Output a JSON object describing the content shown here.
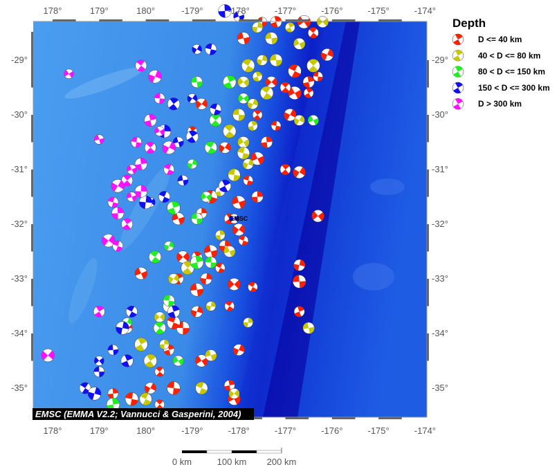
{
  "map": {
    "lon_ticks": [
      178,
      179,
      180,
      -179,
      -178,
      -177,
      -176,
      -175,
      -174
    ],
    "lon_labels": [
      "178°",
      "179°",
      "180°",
      "-179°",
      "-178°",
      "-177°",
      "-176°",
      "-175°",
      "-174°"
    ],
    "lat_ticks": [
      -29,
      -30,
      -31,
      -32,
      -33,
      -34,
      -35
    ],
    "lat_labels": [
      "-29°",
      "-30°",
      "-31°",
      "-32°",
      "-33°",
      "-34°",
      "-35°"
    ],
    "attribution": "EMSC (EMMA V2.2; Vannucci & Gasperini, 2004)",
    "marker_label": "EMSC",
    "marker_position": [
      -178.0,
      -31.9
    ]
  },
  "legend": {
    "title": "Depth",
    "items": [
      {
        "label": "D <= 40 km",
        "color": "#ff2000"
      },
      {
        "label": "40 < D <= 80 km",
        "color": "#c8c800"
      },
      {
        "label": "80 < D <= 150 km",
        "color": "#20f020"
      },
      {
        "label": "150 < D <= 300 km",
        "color": "#1010f0"
      },
      {
        "label": "D > 300 km",
        "color": "#ff10ff"
      }
    ]
  },
  "scale_bar": {
    "labels": [
      "0 km",
      "100 km",
      "200 km"
    ]
  },
  "events": [
    [
      -177.5,
      -28.3,
      0
    ],
    [
      -177.2,
      -28.3,
      0
    ],
    [
      -176.6,
      -28.3,
      0
    ],
    [
      -176.4,
      -28.5,
      0
    ],
    [
      -176.1,
      -28.9,
      0
    ],
    [
      -176.3,
      -29.3,
      0
    ],
    [
      -176.5,
      -29.4,
      0
    ],
    [
      -176.8,
      -29.6,
      0
    ],
    [
      -177.0,
      -29.5,
      0
    ],
    [
      -176.9,
      -30.0,
      0
    ],
    [
      -177.2,
      -30.2,
      0
    ],
    [
      -177.4,
      -30.5,
      0
    ],
    [
      -177.6,
      -30.8,
      0
    ],
    [
      -177.0,
      -31.0,
      0
    ],
    [
      -176.7,
      -31.05,
      0
    ],
    [
      -177.8,
      -31.2,
      0
    ],
    [
      -177.6,
      -31.5,
      0
    ],
    [
      -178.0,
      -31.6,
      0
    ],
    [
      -178.2,
      -31.9,
      0
    ],
    [
      -178.0,
      -32.1,
      0
    ],
    [
      -177.9,
      -32.3,
      0
    ],
    [
      -178.3,
      -32.4,
      0
    ],
    [
      -178.6,
      -32.5,
      0
    ],
    [
      -178.9,
      -32.6,
      0
    ],
    [
      -179.2,
      -32.6,
      0
    ],
    [
      -178.4,
      -32.8,
      0
    ],
    [
      -178.7,
      -33.0,
      0
    ],
    [
      -178.9,
      -33.2,
      0
    ],
    [
      -179.3,
      -33.0,
      0
    ],
    [
      -178.1,
      -33.1,
      0
    ],
    [
      -177.7,
      -33.15,
      0
    ],
    [
      -176.7,
      -32.75,
      0
    ],
    [
      -176.7,
      -33.05,
      0
    ],
    [
      -176.7,
      -33.6,
      0
    ],
    [
      -176.3,
      -31.85,
      0
    ],
    [
      -178.2,
      -33.5,
      0
    ],
    [
      -178.9,
      -33.6,
      0
    ],
    [
      -179.2,
      -33.9,
      0
    ],
    [
      -179.5,
      -34.3,
      0
    ],
    [
      -178.8,
      -34.5,
      0
    ],
    [
      -179.7,
      -34.7,
      0
    ],
    [
      -178.0,
      -34.3,
      0
    ],
    [
      -179.4,
      -35.0,
      0
    ],
    [
      -178.2,
      -34.95,
      0
    ],
    [
      -178.1,
      -35.2,
      0
    ],
    [
      -179.7,
      -35.3,
      0
    ],
    [
      -179.9,
      -35.0,
      0
    ],
    [
      179.7,
      -35.2,
      0
    ],
    [
      179.3,
      -35.1,
      0
    ],
    [
      179.9,
      -32.9,
      0
    ],
    [
      -177.6,
      -30.0,
      0
    ],
    [
      -178.3,
      -30.6,
      0
    ],
    [
      -178.6,
      -31.5,
      0
    ],
    [
      -178.8,
      -31.8,
      0
    ],
    [
      -179.3,
      -31.9,
      0
    ],
    [
      -179.0,
      -30.3,
      0
    ],
    [
      -178.8,
      -29.8,
      0
    ],
    [
      -179.4,
      -33.8,
      0
    ],
    [
      179.6,
      -33.9,
      0
    ],
    [
      -177.9,
      -28.6,
      0
    ],
    [
      -176.5,
      -29.6,
      0
    ],
    [
      -177.3,
      -29.4,
      0
    ],
    [
      -176.8,
      -29.2,
      0
    ],
    [
      -177.6,
      -28.4,
      1
    ],
    [
      -177.3,
      -28.6,
      1
    ],
    [
      -176.9,
      -28.4,
      1
    ],
    [
      -176.2,
      -28.3,
      1
    ],
    [
      -177.8,
      -29.1,
      1
    ],
    [
      -177.5,
      -29.0,
      1
    ],
    [
      -177.2,
      -29.0,
      1
    ],
    [
      -177.6,
      -29.3,
      1
    ],
    [
      -177.9,
      -29.4,
      1
    ],
    [
      -177.4,
      -29.6,
      1
    ],
    [
      -177.7,
      -29.8,
      1
    ],
    [
      -178.0,
      -30.0,
      1
    ],
    [
      -177.7,
      -30.2,
      1
    ],
    [
      -177.9,
      -30.5,
      1
    ],
    [
      -178.2,
      -30.3,
      1
    ],
    [
      -177.8,
      -30.9,
      1
    ],
    [
      -178.1,
      -31.1,
      1
    ],
    [
      -178.4,
      -31.4,
      1
    ],
    [
      -176.7,
      -28.7,
      1
    ],
    [
      -176.4,
      -29.1,
      1
    ],
    [
      -176.7,
      -30.1,
      1
    ],
    [
      -177.9,
      -30.7,
      1
    ],
    [
      -178.4,
      -32.2,
      1
    ],
    [
      -178.2,
      -32.5,
      1
    ],
    [
      -179.1,
      -32.8,
      1
    ],
    [
      -179.4,
      -33.0,
      1
    ],
    [
      -179.5,
      -33.5,
      1
    ],
    [
      -179.6,
      -34.2,
      1
    ],
    [
      -178.6,
      -34.4,
      1
    ],
    [
      -179.9,
      -34.5,
      1
    ],
    [
      -178.1,
      -35.1,
      1
    ],
    [
      -178.8,
      -35.0,
      1
    ],
    [
      -177.8,
      -33.8,
      1
    ],
    [
      -176.5,
      -33.9,
      1
    ],
    [
      179.9,
      -34.2,
      1
    ],
    [
      -179.7,
      -33.7,
      1
    ],
    [
      180.0,
      -35.2,
      1
    ],
    [
      -178.6,
      -33.5,
      1
    ],
    [
      -178.9,
      -29.4,
      2
    ],
    [
      -178.2,
      -29.4,
      2
    ],
    [
      -177.9,
      -29.7,
      2
    ],
    [
      -178.6,
      -30.6,
      2
    ],
    [
      -179.0,
      -30.9,
      2
    ],
    [
      -178.9,
      -31.9,
      2
    ],
    [
      -179.4,
      -31.7,
      2
    ],
    [
      -178.7,
      -31.5,
      2
    ],
    [
      -179.8,
      -32.6,
      2
    ],
    [
      -179.5,
      -32.4,
      2
    ],
    [
      -178.6,
      -32.7,
      2
    ],
    [
      -178.9,
      -32.7,
      2
    ],
    [
      -179.3,
      -34.5,
      2
    ],
    [
      -179.7,
      -33.9,
      2
    ],
    [
      179.6,
      -33.8,
      2
    ],
    [
      -179.5,
      -33.4,
      2
    ],
    [
      179.3,
      -35.3,
      2
    ],
    [
      -176.4,
      -30.1,
      2
    ],
    [
      -178.5,
      -30.1,
      2
    ],
    [
      -178.9,
      -28.8,
      3
    ],
    [
      -178.6,
      -28.8,
      3
    ],
    [
      -178.3,
      -28.1,
      3
    ],
    [
      -178.0,
      -28.2,
      3
    ],
    [
      -179.4,
      -29.8,
      3
    ],
    [
      -179.0,
      -29.7,
      3
    ],
    [
      -178.5,
      -29.9,
      3
    ],
    [
      -179.6,
      -30.3,
      3
    ],
    [
      -179.3,
      -30.5,
      3
    ],
    [
      -179.0,
      -30.4,
      3
    ],
    [
      -179.9,
      -31.6,
      3
    ],
    [
      -179.6,
      -31.5,
      3
    ],
    [
      -180.0,
      -31.6,
      3
    ],
    [
      -179.2,
      -31.2,
      3
    ],
    [
      -178.3,
      -31.3,
      3
    ],
    [
      -178.1,
      -31.9,
      3
    ],
    [
      179.7,
      -33.6,
      3
    ],
    [
      179.5,
      -33.9,
      3
    ],
    [
      179.3,
      -34.3,
      3
    ],
    [
      179.6,
      -34.5,
      3
    ],
    [
      179.0,
      -34.5,
      3
    ],
    [
      178.7,
      -35.0,
      3
    ],
    [
      178.9,
      -35.1,
      3
    ],
    [
      179.0,
      -34.7,
      3
    ],
    [
      -179.4,
      -33.6,
      3
    ],
    [
      178.35,
      -29.25,
      4
    ],
    [
      179.9,
      -29.1,
      4
    ],
    [
      -179.8,
      -29.3,
      4
    ],
    [
      -179.7,
      -29.7,
      4
    ],
    [
      -179.9,
      -30.1,
      4
    ],
    [
      -179.7,
      -30.3,
      4
    ],
    [
      -179.9,
      -30.6,
      4
    ],
    [
      -179.5,
      -30.6,
      4
    ],
    [
      179.8,
      -30.5,
      4
    ],
    [
      179.9,
      -30.9,
      4
    ],
    [
      179.7,
      -31.0,
      4
    ],
    [
      179.6,
      -31.2,
      4
    ],
    [
      179.4,
      -31.3,
      4
    ],
    [
      179.3,
      -31.6,
      4
    ],
    [
      179.4,
      -31.8,
      4
    ],
    [
      179.7,
      -31.5,
      4
    ],
    [
      179.6,
      -32.0,
      4
    ],
    [
      179.2,
      -32.3,
      4
    ],
    [
      179.4,
      -32.4,
      4
    ],
    [
      179.9,
      -31.4,
      4
    ],
    [
      179.0,
      -30.45,
      4
    ],
    [
      179.0,
      -33.6,
      4
    ],
    [
      177.9,
      -34.4,
      4
    ],
    [
      -179.5,
      -31.0,
      4
    ]
  ]
}
